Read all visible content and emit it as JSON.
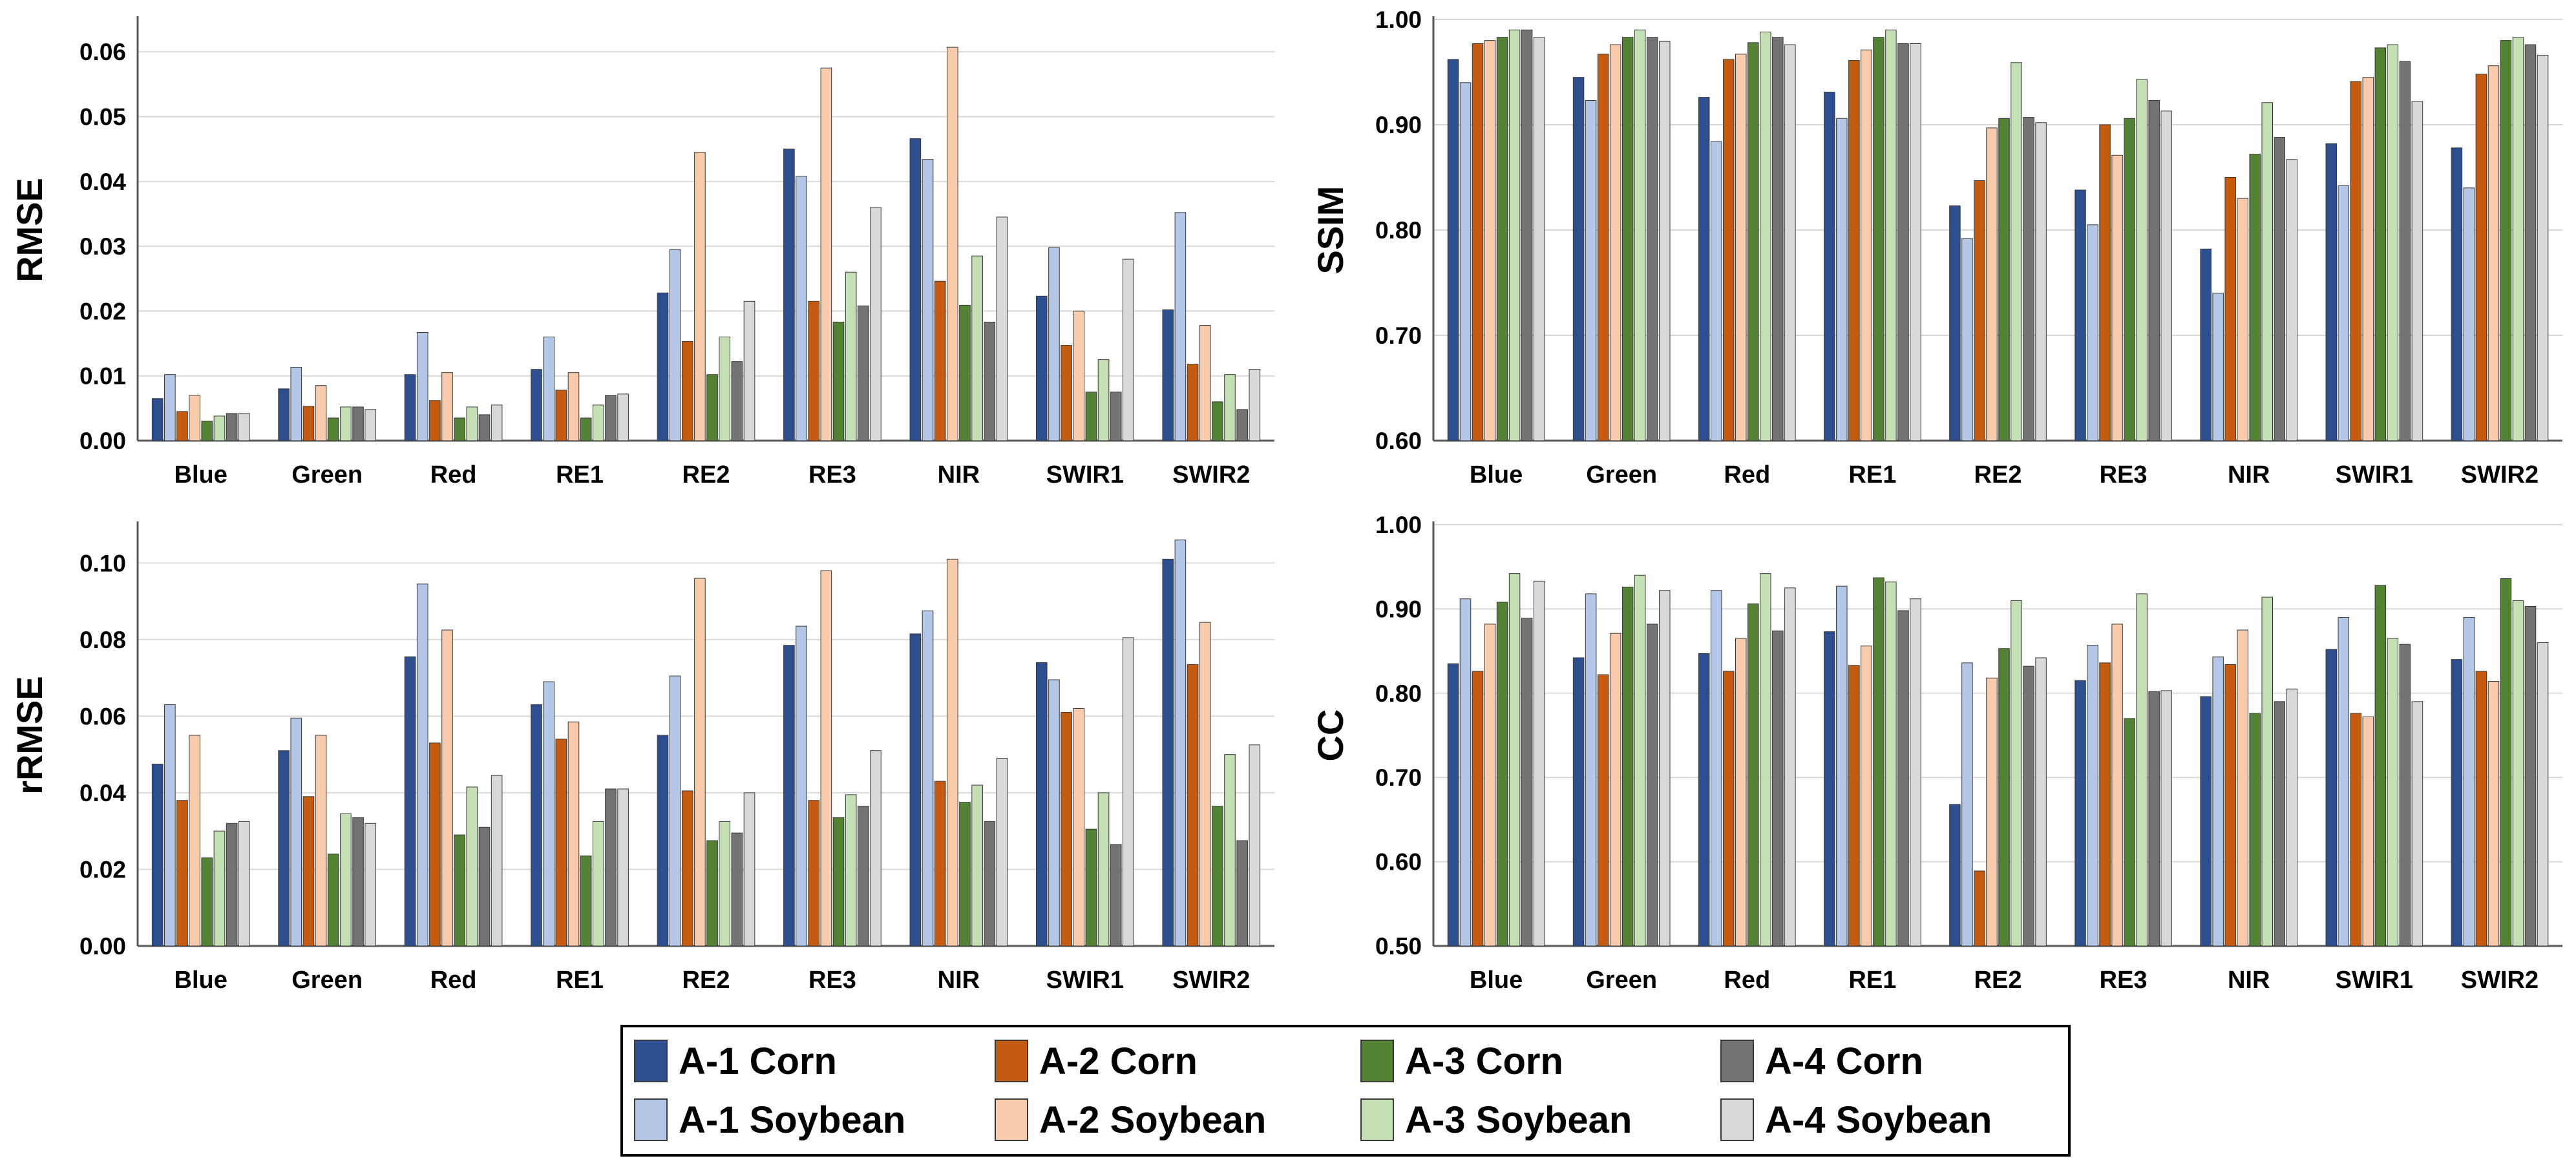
{
  "categories": [
    "Blue",
    "Green",
    "Red",
    "RE1",
    "RE2",
    "RE3",
    "NIR",
    "SWIR1",
    "SWIR2"
  ],
  "legend": [
    {
      "name": "A-1 Corn",
      "color": "#2E4F8F"
    },
    {
      "name": "A-1 Soybean",
      "color": "#B4C7E7"
    },
    {
      "name": "A-2 Corn",
      "color": "#C55A11"
    },
    {
      "name": "A-2 Soybean",
      "color": "#F8CBAD"
    },
    {
      "name": "A-3 Corn",
      "color": "#548235"
    },
    {
      "name": "A-3 Soybean",
      "color": "#C5E0B4"
    },
    {
      "name": "A-4 Corn",
      "color": "#737373"
    },
    {
      "name": "A-4 Soybean",
      "color": "#D9D9D9"
    }
  ],
  "chart_data": [
    {
      "type": "bar",
      "ylabel": "RMSE",
      "ylim": [
        0,
        0.065
      ],
      "yticks": [
        0,
        0.01,
        0.02,
        0.03,
        0.04,
        0.05,
        0.06
      ],
      "ytick_labels": [
        "0.00",
        "0.01",
        "0.02",
        "0.03",
        "0.04",
        "0.05",
        "0.06"
      ],
      "categories": [
        "Blue",
        "Green",
        "Red",
        "RE1",
        "RE2",
        "RE3",
        "NIR",
        "SWIR1",
        "SWIR2"
      ],
      "series": [
        {
          "name": "A-1 Corn",
          "values": [
            0.0065,
            0.008,
            0.0102,
            0.011,
            0.0228,
            0.045,
            0.0466,
            0.0223,
            0.0202
          ]
        },
        {
          "name": "A-1 Soybean",
          "values": [
            0.0102,
            0.0113,
            0.0167,
            0.016,
            0.0295,
            0.0408,
            0.0434,
            0.0298,
            0.0352
          ]
        },
        {
          "name": "A-2 Corn",
          "values": [
            0.0045,
            0.0053,
            0.0062,
            0.0078,
            0.0153,
            0.0215,
            0.0246,
            0.0147,
            0.0118
          ]
        },
        {
          "name": "A-2 Soybean",
          "values": [
            0.007,
            0.0085,
            0.0105,
            0.0105,
            0.0445,
            0.0575,
            0.0607,
            0.02,
            0.0178
          ]
        },
        {
          "name": "A-3 Corn",
          "values": [
            0.003,
            0.0035,
            0.0035,
            0.0035,
            0.0102,
            0.0183,
            0.0209,
            0.0075,
            0.006
          ]
        },
        {
          "name": "A-3 Soybean",
          "values": [
            0.0038,
            0.0052,
            0.0052,
            0.0055,
            0.016,
            0.026,
            0.0285,
            0.0125,
            0.0102
          ]
        },
        {
          "name": "A-4 Corn",
          "values": [
            0.0042,
            0.0052,
            0.004,
            0.007,
            0.0122,
            0.0208,
            0.0183,
            0.0075,
            0.0048
          ]
        },
        {
          "name": "A-4 Soybean",
          "values": [
            0.0042,
            0.0048,
            0.0055,
            0.0072,
            0.0215,
            0.036,
            0.0345,
            0.028,
            0.011
          ]
        }
      ]
    },
    {
      "type": "bar",
      "ylabel": "SSIM",
      "ylim": [
        0.6,
        1.0
      ],
      "yticks": [
        0.6,
        0.7,
        0.8,
        0.9,
        1.0
      ],
      "ytick_labels": [
        "0.60",
        "0.70",
        "0.80",
        "0.90",
        "1.00"
      ],
      "categories": [
        "Blue",
        "Green",
        "Red",
        "RE1",
        "RE2",
        "RE3",
        "NIR",
        "SWIR1",
        "SWIR2"
      ],
      "series": [
        {
          "name": "A-1 Corn",
          "values": [
            0.962,
            0.945,
            0.926,
            0.931,
            0.823,
            0.838,
            0.782,
            0.882,
            0.878
          ]
        },
        {
          "name": "A-1 Soybean",
          "values": [
            0.94,
            0.923,
            0.884,
            0.906,
            0.792,
            0.805,
            0.74,
            0.842,
            0.84
          ]
        },
        {
          "name": "A-2 Corn",
          "values": [
            0.977,
            0.967,
            0.962,
            0.961,
            0.847,
            0.9,
            0.85,
            0.941,
            0.948
          ]
        },
        {
          "name": "A-2 Soybean",
          "values": [
            0.98,
            0.976,
            0.967,
            0.971,
            0.897,
            0.871,
            0.83,
            0.945,
            0.956
          ]
        },
        {
          "name": "A-3 Corn",
          "values": [
            0.983,
            0.983,
            0.978,
            0.983,
            0.906,
            0.906,
            0.872,
            0.973,
            0.98
          ]
        },
        {
          "name": "A-3 Soybean",
          "values": [
            0.99,
            0.99,
            0.988,
            0.99,
            0.959,
            0.943,
            0.921,
            0.976,
            0.983
          ]
        },
        {
          "name": "A-4 Corn",
          "values": [
            0.99,
            0.983,
            0.983,
            0.977,
            0.907,
            0.923,
            0.888,
            0.96,
            0.976
          ]
        },
        {
          "name": "A-4 Soybean",
          "values": [
            0.983,
            0.979,
            0.976,
            0.977,
            0.902,
            0.913,
            0.867,
            0.922,
            0.966
          ]
        }
      ]
    },
    {
      "type": "bar",
      "ylabel": "rRMSE",
      "ylim": [
        0,
        0.11
      ],
      "yticks": [
        0,
        0.02,
        0.04,
        0.06,
        0.08,
        0.1
      ],
      "ytick_labels": [
        "0.00",
        "0.02",
        "0.04",
        "0.06",
        "0.08",
        "0.10"
      ],
      "categories": [
        "Blue",
        "Green",
        "Red",
        "RE1",
        "RE2",
        "RE3",
        "NIR",
        "SWIR1",
        "SWIR2"
      ],
      "series": [
        {
          "name": "A-1 Corn",
          "values": [
            0.0475,
            0.051,
            0.0755,
            0.063,
            0.055,
            0.0785,
            0.0815,
            0.074,
            0.101
          ]
        },
        {
          "name": "A-1 Soybean",
          "values": [
            0.063,
            0.0595,
            0.0945,
            0.069,
            0.0705,
            0.0835,
            0.0875,
            0.0695,
            0.106
          ]
        },
        {
          "name": "A-2 Corn",
          "values": [
            0.038,
            0.039,
            0.053,
            0.054,
            0.0405,
            0.038,
            0.043,
            0.061,
            0.0735
          ]
        },
        {
          "name": "A-2 Soybean",
          "values": [
            0.055,
            0.055,
            0.0825,
            0.0585,
            0.096,
            0.098,
            0.101,
            0.062,
            0.0845
          ]
        },
        {
          "name": "A-3 Corn",
          "values": [
            0.023,
            0.024,
            0.029,
            0.0235,
            0.0275,
            0.0335,
            0.0375,
            0.0305,
            0.0365
          ]
        },
        {
          "name": "A-3 Soybean",
          "values": [
            0.03,
            0.0345,
            0.0415,
            0.0325,
            0.0325,
            0.0395,
            0.042,
            0.04,
            0.05
          ]
        },
        {
          "name": "A-4 Corn",
          "values": [
            0.032,
            0.0335,
            0.031,
            0.041,
            0.0295,
            0.0365,
            0.0325,
            0.0265,
            0.0275
          ]
        },
        {
          "name": "A-4 Soybean",
          "values": [
            0.0325,
            0.032,
            0.0445,
            0.041,
            0.04,
            0.051,
            0.049,
            0.0805,
            0.0525
          ]
        }
      ]
    },
    {
      "type": "bar",
      "ylabel": "CC",
      "ylim": [
        0.5,
        1.0
      ],
      "yticks": [
        0.5,
        0.6,
        0.7,
        0.8,
        0.9,
        1.0
      ],
      "ytick_labels": [
        "0.50",
        "0.60",
        "0.70",
        "0.80",
        "0.90",
        "1.00"
      ],
      "categories": [
        "Blue",
        "Green",
        "Red",
        "RE1",
        "RE2",
        "RE3",
        "NIR",
        "SWIR1",
        "SWIR2"
      ],
      "series": [
        {
          "name": "A-1 Corn",
          "values": [
            0.835,
            0.842,
            0.847,
            0.873,
            0.668,
            0.815,
            0.796,
            0.852,
            0.84
          ]
        },
        {
          "name": "A-1 Soybean",
          "values": [
            0.912,
            0.918,
            0.922,
            0.927,
            0.836,
            0.857,
            0.843,
            0.89,
            0.89
          ]
        },
        {
          "name": "A-2 Corn",
          "values": [
            0.826,
            0.822,
            0.826,
            0.833,
            0.589,
            0.836,
            0.834,
            0.776,
            0.826
          ]
        },
        {
          "name": "A-2 Soybean",
          "values": [
            0.882,
            0.871,
            0.865,
            0.856,
            0.818,
            0.882,
            0.875,
            0.772,
            0.814
          ]
        },
        {
          "name": "A-3 Corn",
          "values": [
            0.908,
            0.926,
            0.906,
            0.937,
            0.853,
            0.77,
            0.776,
            0.928,
            0.936
          ]
        },
        {
          "name": "A-3 Soybean",
          "values": [
            0.942,
            0.94,
            0.942,
            0.932,
            0.91,
            0.918,
            0.914,
            0.865,
            0.91
          ]
        },
        {
          "name": "A-4 Corn",
          "values": [
            0.889,
            0.882,
            0.874,
            0.898,
            0.832,
            0.802,
            0.79,
            0.858,
            0.903
          ]
        },
        {
          "name": "A-4 Soybean",
          "values": [
            0.933,
            0.922,
            0.925,
            0.912,
            0.842,
            0.803,
            0.805,
            0.79,
            0.86
          ]
        }
      ]
    }
  ]
}
